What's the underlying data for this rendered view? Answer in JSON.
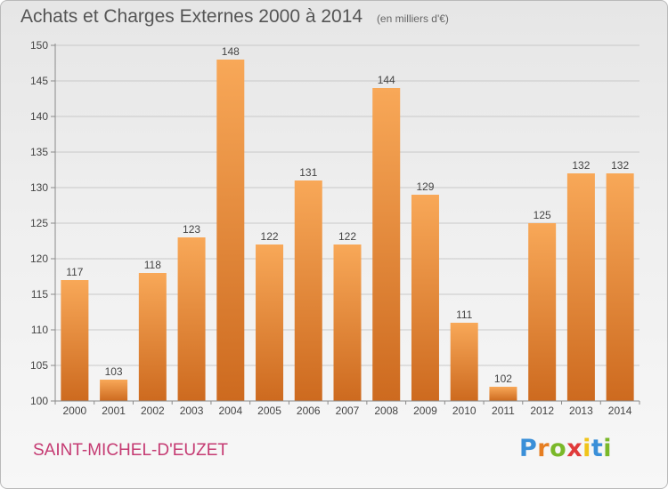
{
  "colors": {
    "bar_light": "#f8a858",
    "bar_dark": "#cd6a1f",
    "grid": "#c9c9c9",
    "axis": "#8a8a8a",
    "text": "#444444",
    "commune": "#c53a72"
  },
  "header": {
    "title": "Achats et Charges Externes 2000 à 2014",
    "unit": "(en milliers d'€)"
  },
  "footer": {
    "commune": "SAINT-MICHEL-D'EUZET",
    "logo": {
      "text": "Proxiti",
      "letter_colors": [
        "#3a8fd8",
        "#e67e22",
        "#7ab829",
        "#e03a3a",
        "#f0c419",
        "#3a8fd8",
        "#7ab829"
      ]
    }
  },
  "chart_data": {
    "type": "bar",
    "title": "Achats et Charges Externes 2000 à 2014",
    "subtitle": "(en milliers d'€)",
    "categories": [
      "2000",
      "2001",
      "2002",
      "2003",
      "2004",
      "2005",
      "2006",
      "2007",
      "2008",
      "2009",
      "2010",
      "2011",
      "2012",
      "2013",
      "2014"
    ],
    "values": [
      117,
      103,
      118,
      123,
      148,
      122,
      131,
      122,
      144,
      129,
      111,
      102,
      125,
      132,
      132
    ],
    "ylim": [
      100,
      150
    ],
    "yticks": [
      100,
      105,
      110,
      115,
      120,
      125,
      130,
      135,
      140,
      145,
      150
    ],
    "grid": true,
    "xlabel": "",
    "ylabel": ""
  }
}
